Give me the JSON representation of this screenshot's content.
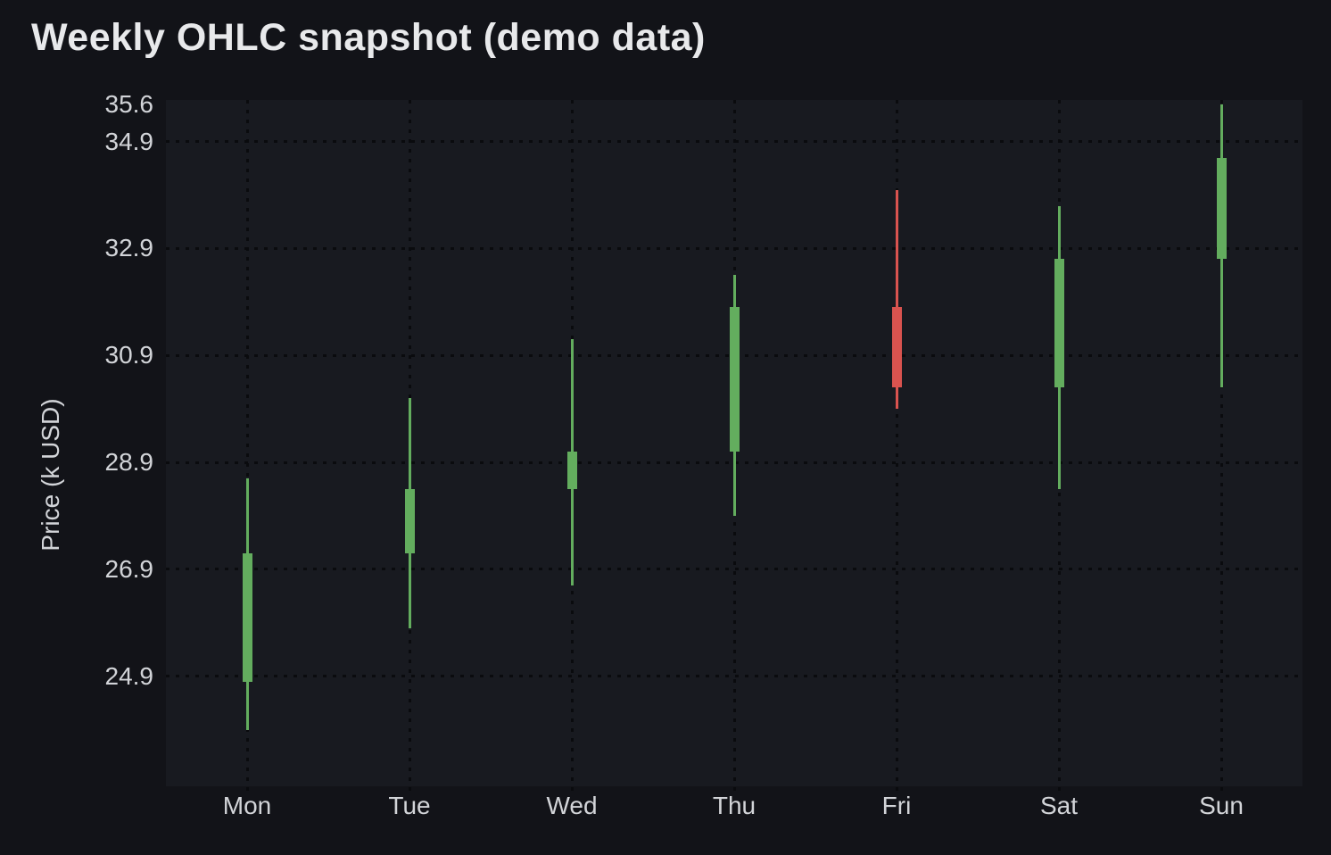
{
  "title": "Weekly OHLC snapshot (demo data)",
  "theme": {
    "page_bg": "#121318",
    "plot_bg": "#181a20",
    "grid_color": "#0a0b0e",
    "title_color": "#e8e9eb",
    "axis_text_color": "#d2d4d8",
    "up_color": "#63ad5e",
    "down_color": "#d9534f"
  },
  "chart_data": {
    "type": "candlestick",
    "title": "Weekly OHLC snapshot (demo data)",
    "xlabel": "",
    "ylabel": "Price (k USD)",
    "categories": [
      "Mon",
      "Tue",
      "Wed",
      "Thu",
      "Fri",
      "Sat",
      "Sun"
    ],
    "ohlc": [
      {
        "day": "Mon",
        "open": 24.8,
        "high": 28.6,
        "low": 23.9,
        "close": 27.2,
        "direction": "up"
      },
      {
        "day": "Tue",
        "open": 27.2,
        "high": 30.1,
        "low": 25.8,
        "close": 28.4,
        "direction": "up"
      },
      {
        "day": "Wed",
        "open": 28.4,
        "high": 31.2,
        "low": 26.6,
        "close": 29.1,
        "direction": "up"
      },
      {
        "day": "Thu",
        "open": 29.1,
        "high": 32.4,
        "low": 27.9,
        "close": 31.8,
        "direction": "up"
      },
      {
        "day": "Fri",
        "open": 31.8,
        "high": 34.0,
        "low": 29.9,
        "close": 30.3,
        "direction": "down"
      },
      {
        "day": "Sat",
        "open": 30.3,
        "high": 33.7,
        "low": 28.4,
        "close": 32.7,
        "direction": "up"
      },
      {
        "day": "Sun",
        "open": 32.7,
        "high": 35.6,
        "low": 30.3,
        "close": 34.6,
        "direction": "up"
      }
    ],
    "y_ticks": [
      {
        "label": "35.6",
        "value": 35.6,
        "grid": false
      },
      {
        "label": "34.9",
        "value": 34.9,
        "grid": true
      },
      {
        "label": "32.9",
        "value": 32.9,
        "grid": true
      },
      {
        "label": "30.9",
        "value": 30.9,
        "grid": true
      },
      {
        "label": "28.9",
        "value": 28.9,
        "grid": true
      },
      {
        "label": "26.9",
        "value": 26.9,
        "grid": true
      },
      {
        "label": "24.9",
        "value": 24.9,
        "grid": true
      }
    ],
    "ylim": [
      22.84,
      35.68
    ],
    "grid": "dotted",
    "legend": "none",
    "colors": {
      "up": "#63ad5e",
      "down": "#d9534f"
    }
  }
}
